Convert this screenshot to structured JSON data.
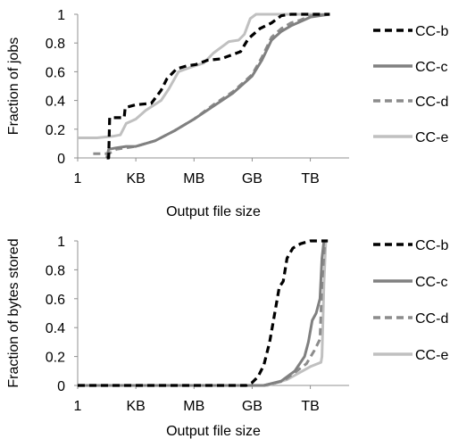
{
  "colors": {
    "CC-b": "#000000",
    "CC-c": "#808080",
    "CC-d": "#8c8c8c",
    "CC-e": "#c0c0c0",
    "axis": "#909090"
  },
  "chart_data": [
    {
      "type": "line",
      "title": "",
      "xlabel": "Output file size",
      "ylabel": "Fraction of jobs",
      "x_scale": "log-bytes",
      "x_ticks": [
        "1",
        "KB",
        "MB",
        "GB",
        "TB"
      ],
      "x_tick_values": [
        0,
        3,
        6,
        9,
        12
      ],
      "xlim": [
        0,
        14
      ],
      "ylim": [
        0,
        1
      ],
      "y_ticks": [
        "0",
        "0.2",
        "0.4",
        "0.6",
        "0.8",
        "1"
      ],
      "grid": false,
      "legend": "right",
      "series": [
        {
          "name": "CC-b",
          "style": "dashed",
          "points": [
            [
              1.5,
              0
            ],
            [
              1.6,
              0
            ],
            [
              1.65,
              0.28
            ],
            [
              2.4,
              0.28
            ],
            [
              2.45,
              0.35
            ],
            [
              3,
              0.37
            ],
            [
              3.8,
              0.38
            ],
            [
              4.3,
              0.47
            ],
            [
              4.6,
              0.55
            ],
            [
              5.1,
              0.62
            ],
            [
              5.6,
              0.64
            ],
            [
              6.1,
              0.65
            ],
            [
              6.7,
              0.68
            ],
            [
              7.4,
              0.69
            ],
            [
              8.0,
              0.72
            ],
            [
              8.4,
              0.74
            ],
            [
              8.8,
              0.83
            ],
            [
              9.4,
              0.9
            ],
            [
              10.0,
              0.94
            ],
            [
              10.5,
              0.99
            ],
            [
              11,
              1.0
            ],
            [
              13,
              1.0
            ]
          ]
        },
        {
          "name": "CC-c",
          "style": "solid",
          "points": [
            [
              1.5,
              0
            ],
            [
              1.6,
              0.06
            ],
            [
              2,
              0.07
            ],
            [
              2.5,
              0.08
            ],
            [
              3,
              0.08
            ],
            [
              3.5,
              0.1
            ],
            [
              4,
              0.12
            ],
            [
              5,
              0.19
            ],
            [
              6,
              0.27
            ],
            [
              7,
              0.36
            ],
            [
              8,
              0.45
            ],
            [
              8.5,
              0.51
            ],
            [
              9,
              0.57
            ],
            [
              9.5,
              0.68
            ],
            [
              10,
              0.82
            ],
            [
              10.5,
              0.88
            ],
            [
              11,
              0.92
            ],
            [
              11.5,
              0.95
            ],
            [
              12,
              0.98
            ],
            [
              13,
              1.0
            ]
          ]
        },
        {
          "name": "CC-d",
          "style": "dashed",
          "points": [
            [
              0.8,
              0.03
            ],
            [
              1.6,
              0.03
            ],
            [
              2,
              0.06
            ],
            [
              2.5,
              0.07
            ],
            [
              3,
              0.08
            ],
            [
              3.5,
              0.1
            ],
            [
              4,
              0.12
            ],
            [
              5,
              0.19
            ],
            [
              6,
              0.27
            ],
            [
              7,
              0.37
            ],
            [
              8,
              0.46
            ],
            [
              8.5,
              0.52
            ],
            [
              9,
              0.58
            ],
            [
              9.5,
              0.7
            ],
            [
              10,
              0.84
            ],
            [
              10.5,
              0.9
            ],
            [
              11,
              0.94
            ],
            [
              11.5,
              0.96
            ],
            [
              12,
              0.99
            ],
            [
              13,
              1.0
            ]
          ]
        },
        {
          "name": "CC-e",
          "style": "solid",
          "points": [
            [
              0,
              0.14
            ],
            [
              1,
              0.14
            ],
            [
              1.8,
              0.15
            ],
            [
              2.2,
              0.16
            ],
            [
              2.5,
              0.24
            ],
            [
              3,
              0.27
            ],
            [
              3.5,
              0.33
            ],
            [
              4.3,
              0.4
            ],
            [
              4.7,
              0.48
            ],
            [
              5.2,
              0.6
            ],
            [
              5.8,
              0.63
            ],
            [
              6.5,
              0.66
            ],
            [
              7.0,
              0.73
            ],
            [
              7.5,
              0.78
            ],
            [
              7.8,
              0.81
            ],
            [
              8.3,
              0.82
            ],
            [
              8.6,
              0.86
            ],
            [
              8.9,
              0.97
            ],
            [
              9.2,
              1.0
            ],
            [
              13,
              1.0
            ]
          ]
        }
      ]
    },
    {
      "type": "line",
      "title": "",
      "xlabel": "Output file size",
      "ylabel": "Fraction of bytes stored",
      "x_scale": "log-bytes",
      "x_ticks": [
        "1",
        "KB",
        "MB",
        "GB",
        "TB"
      ],
      "x_tick_values": [
        0,
        3,
        6,
        9,
        12
      ],
      "xlim": [
        0,
        14
      ],
      "ylim": [
        0,
        1
      ],
      "y_ticks": [
        "0",
        "0.2",
        "0.4",
        "0.6",
        "0.8",
        "1"
      ],
      "grid": false,
      "legend": "right",
      "series": [
        {
          "name": "CC-b",
          "style": "dashed",
          "points": [
            [
              0,
              0
            ],
            [
              8.7,
              0
            ],
            [
              9.0,
              0.02
            ],
            [
              9.3,
              0.06
            ],
            [
              9.6,
              0.14
            ],
            [
              9.9,
              0.3
            ],
            [
              10.1,
              0.45
            ],
            [
              10.4,
              0.68
            ],
            [
              10.6,
              0.72
            ],
            [
              10.8,
              0.88
            ],
            [
              11.1,
              0.95
            ],
            [
              11.5,
              0.98
            ],
            [
              12.0,
              1.0
            ],
            [
              12.9,
              1.0
            ]
          ]
        },
        {
          "name": "CC-c",
          "style": "solid",
          "points": [
            [
              0,
              0
            ],
            [
              9.6,
              0
            ],
            [
              10.5,
              0.03
            ],
            [
              11.2,
              0.1
            ],
            [
              11.7,
              0.2
            ],
            [
              11.9,
              0.3
            ],
            [
              12.1,
              0.45
            ],
            [
              12.3,
              0.5
            ],
            [
              12.5,
              0.6
            ],
            [
              12.6,
              0.88
            ],
            [
              12.7,
              1.0
            ],
            [
              12.9,
              1.0
            ]
          ]
        },
        {
          "name": "CC-d",
          "style": "dashed",
          "points": [
            [
              0,
              0
            ],
            [
              9.6,
              0
            ],
            [
              10.6,
              0.03
            ],
            [
              11.3,
              0.1
            ],
            [
              11.8,
              0.15
            ],
            [
              12.2,
              0.24
            ],
            [
              12.5,
              0.32
            ],
            [
              12.6,
              0.7
            ],
            [
              12.75,
              1.0
            ],
            [
              12.9,
              1.0
            ]
          ]
        },
        {
          "name": "CC-e",
          "style": "solid",
          "points": [
            [
              0,
              0
            ],
            [
              9.8,
              0
            ],
            [
              10.8,
              0.04
            ],
            [
              12.0,
              0.13
            ],
            [
              12.55,
              0.16
            ],
            [
              12.6,
              0.2
            ],
            [
              12.7,
              0.7
            ],
            [
              12.8,
              1.0
            ],
            [
              12.9,
              1.0
            ]
          ]
        }
      ]
    }
  ]
}
